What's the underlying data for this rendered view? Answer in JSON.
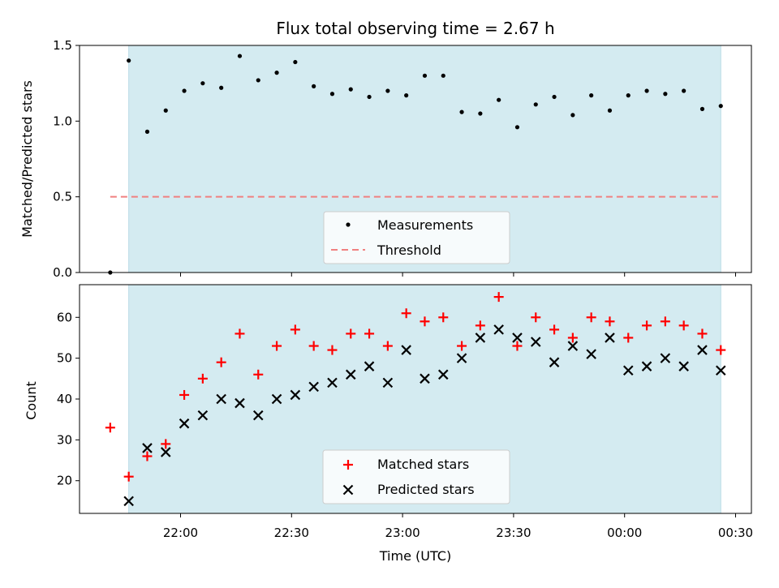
{
  "figure": {
    "title": "Flux total observing time = 2.67 h",
    "xlabel": "Time (UTC)",
    "x_tick_labels": [
      "22:00",
      "22:30",
      "23:00",
      "23:30",
      "00:00",
      "00:30"
    ]
  },
  "colors": {
    "observing_span": "#d4ebf1",
    "measurements": "#000000",
    "threshold": "#f08080",
    "matched": "#ff0000",
    "predicted": "#000000"
  },
  "chart_data": [
    {
      "type": "scatter",
      "title": "Flux total observing time = 2.67 h",
      "xlabel": "",
      "ylabel": "Matched/Predicted stars",
      "ylim": [
        0,
        1.5
      ],
      "y_ticks": [
        "0.0",
        "0.5",
        "1.0",
        "1.5"
      ],
      "grid": false,
      "legend_position": "bottom-center",
      "observing_span": [
        "21:46",
        "00:26"
      ],
      "series": [
        {
          "name": "Measurements",
          "marker": "dot",
          "x": [
            "21:41",
            "21:46",
            "21:51",
            "21:56",
            "22:01",
            "22:06",
            "22:11",
            "22:16",
            "22:21",
            "22:26",
            "22:31",
            "22:36",
            "22:41",
            "22:46",
            "22:51",
            "22:56",
            "23:01",
            "23:06",
            "23:11",
            "23:16",
            "23:21",
            "23:26",
            "23:31",
            "23:36",
            "23:41",
            "23:46",
            "23:51",
            "23:56",
            "00:01",
            "00:06",
            "00:11",
            "00:16",
            "00:21",
            "00:26"
          ],
          "y": [
            0.0,
            1.4,
            0.93,
            1.07,
            1.2,
            1.25,
            1.22,
            1.43,
            1.27,
            1.32,
            1.39,
            1.23,
            1.18,
            1.21,
            1.16,
            1.2,
            1.17,
            1.3,
            1.3,
            1.06,
            1.05,
            1.14,
            0.96,
            1.11,
            1.16,
            1.04,
            1.17,
            1.07,
            1.17,
            1.2,
            1.18,
            1.2,
            1.08,
            1.1
          ]
        }
      ],
      "threshold": {
        "name": "Threshold",
        "value": 0.5,
        "x_range": [
          "21:41",
          "00:26"
        ],
        "style": "dashed"
      }
    },
    {
      "type": "scatter",
      "xlabel": "Time (UTC)",
      "ylabel": "Count",
      "ylim": [
        12,
        68
      ],
      "y_ticks": [
        "20",
        "30",
        "40",
        "50",
        "60"
      ],
      "grid": false,
      "legend_position": "bottom-center",
      "series": [
        {
          "name": "Matched stars",
          "marker": "plus",
          "x": [
            "21:41",
            "21:46",
            "21:51",
            "21:56",
            "22:01",
            "22:06",
            "22:11",
            "22:16",
            "22:21",
            "22:26",
            "22:31",
            "22:36",
            "22:41",
            "22:46",
            "22:51",
            "22:56",
            "23:01",
            "23:06",
            "23:11",
            "23:16",
            "23:21",
            "23:26",
            "23:31",
            "23:36",
            "23:41",
            "23:46",
            "23:51",
            "23:56",
            "00:01",
            "00:06",
            "00:11",
            "00:16",
            "00:21",
            "00:26"
          ],
          "y": [
            33,
            21,
            26,
            29,
            41,
            45,
            49,
            56,
            46,
            53,
            57,
            53,
            52,
            56,
            56,
            53,
            61,
            59,
            60,
            53,
            58,
            65,
            53,
            60,
            57,
            55,
            60,
            59,
            55,
            58,
            59,
            58,
            56,
            52
          ]
        },
        {
          "name": "Predicted stars",
          "marker": "x",
          "x": [
            "21:46",
            "21:51",
            "21:56",
            "22:01",
            "22:06",
            "22:11",
            "22:16",
            "22:21",
            "22:26",
            "22:31",
            "22:36",
            "22:41",
            "22:46",
            "22:51",
            "22:56",
            "23:01",
            "23:06",
            "23:11",
            "23:16",
            "23:21",
            "23:26",
            "23:31",
            "23:36",
            "23:41",
            "23:46",
            "23:51",
            "23:56",
            "00:01",
            "00:06",
            "00:11",
            "00:16",
            "00:21",
            "00:26"
          ],
          "y": [
            15,
            28,
            27,
            34,
            36,
            40,
            39,
            36,
            40,
            41,
            43,
            44,
            46,
            48,
            44,
            52,
            45,
            46,
            50,
            55,
            57,
            55,
            54,
            49,
            53,
            51,
            55,
            47,
            48,
            50,
            48,
            52,
            47
          ]
        }
      ]
    }
  ]
}
